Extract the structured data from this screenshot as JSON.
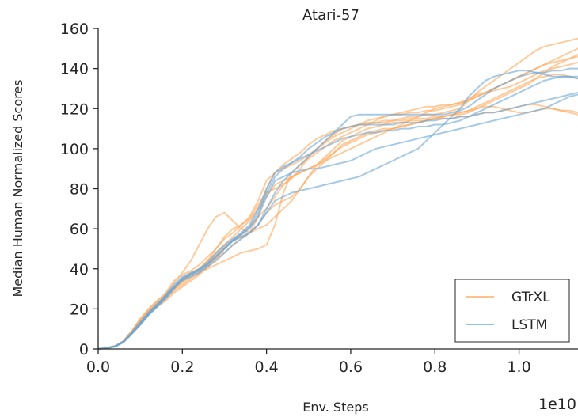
{
  "chart_data": {
    "type": "line",
    "title": "Atari-57",
    "xlabel": "Env. Steps",
    "ylabel": "Median Human Normalized Scores",
    "x_offset_label": "1e10",
    "xlim": [
      0,
      1.14
    ],
    "ylim": [
      0,
      160
    ],
    "xticks": [
      "0.0",
      "0.2",
      "0.4",
      "0.6",
      "0.8",
      "1.0"
    ],
    "yticks": [
      "0",
      "20",
      "40",
      "60",
      "80",
      "100",
      "120",
      "140",
      "160"
    ],
    "grid": false,
    "legend_position": "bottom-right",
    "legend": [
      {
        "label": "GTrXL",
        "color": "#ffa95c"
      },
      {
        "label": "LSTM",
        "color": "#6aa6d6"
      }
    ],
    "x": [
      0,
      0.02,
      0.04,
      0.06,
      0.08,
      0.1,
      0.12,
      0.14,
      0.16,
      0.18,
      0.2,
      0.22,
      0.24,
      0.26,
      0.28,
      0.3,
      0.32,
      0.34,
      0.36,
      0.38,
      0.4,
      0.42,
      0.44,
      0.46,
      0.48,
      0.5,
      0.52,
      0.54,
      0.56,
      0.58,
      0.6,
      0.62,
      0.64,
      0.66,
      0.68,
      0.7,
      0.72,
      0.74,
      0.76,
      0.78,
      0.8,
      0.82,
      0.84,
      0.86,
      0.88,
      0.9,
      0.92,
      0.94,
      0.96,
      0.98,
      1.0,
      1.02,
      1.04,
      1.06,
      1.08,
      1.1,
      1.12,
      1.14
    ],
    "series": [
      {
        "group": "GTrXL",
        "color": "#ffa95c",
        "values": [
          0,
          0.5,
          1.5,
          4,
          9,
          15,
          20,
          24,
          28,
          34,
          37,
          39,
          42,
          46,
          50,
          55,
          58,
          62,
          66,
          74,
          84,
          88,
          92,
          95,
          98,
          102,
          105,
          107,
          109,
          110,
          111,
          112,
          113,
          113,
          114,
          114,
          115,
          116,
          116,
          117,
          117,
          118,
          119,
          120,
          124,
          128,
          131,
          134,
          137,
          140,
          143,
          146,
          149,
          151,
          152,
          153,
          154,
          155
        ]
      },
      {
        "group": "GTrXL",
        "color": "#ffa95c",
        "values": [
          0,
          0.4,
          1.3,
          3.5,
          8,
          13,
          18,
          22,
          27,
          33,
          38,
          44,
          52,
          60,
          66,
          68,
          64,
          60,
          58,
          66,
          80,
          88,
          90,
          92,
          94,
          97,
          100,
          104,
          107,
          110,
          111,
          112,
          112,
          113,
          113,
          114,
          114,
          115,
          115,
          115,
          116,
          116,
          117,
          117,
          118,
          120,
          122,
          124,
          126,
          128,
          130,
          132,
          135,
          138,
          141,
          143,
          145,
          147
        ]
      },
      {
        "group": "GTrXL",
        "color": "#ffa95c",
        "values": [
          0,
          0.5,
          1.4,
          3.8,
          8.5,
          14,
          19,
          23,
          26,
          30,
          33,
          36,
          38,
          40,
          42,
          44,
          46,
          48,
          49,
          50,
          52,
          62,
          78,
          88,
          92,
          95,
          98,
          101,
          104,
          106,
          108,
          110,
          112,
          114,
          116,
          117,
          118,
          119,
          120,
          121,
          121,
          122,
          122,
          123,
          125,
          127,
          128,
          129,
          130,
          131,
          133,
          135,
          137,
          139,
          140,
          141,
          142,
          143
        ]
      },
      {
        "group": "GTrXL",
        "color": "#ffa95c",
        "values": [
          0,
          0.4,
          1.2,
          3.3,
          7.6,
          12,
          17,
          21,
          24,
          28,
          31,
          34,
          37,
          41,
          45,
          50,
          54,
          56,
          58,
          62,
          68,
          72,
          74,
          76,
          80,
          86,
          90,
          94,
          98,
          102,
          104,
          106,
          108,
          109,
          110,
          110,
          111,
          112,
          113,
          114,
          115,
          116,
          117,
          118,
          119,
          121,
          123,
          125,
          127,
          129,
          131,
          133,
          135,
          136,
          137,
          137,
          136,
          135
        ]
      },
      {
        "group": "GTrXL",
        "color": "#ffa95c",
        "values": [
          0,
          0.4,
          1.3,
          3.5,
          8,
          13,
          18,
          22,
          26,
          30,
          34,
          37,
          40,
          44,
          48,
          52,
          56,
          60,
          64,
          70,
          76,
          82,
          84,
          86,
          88,
          90,
          92,
          95,
          98,
          101,
          103,
          105,
          107,
          108,
          109,
          110,
          111,
          112,
          113,
          114,
          115,
          116,
          117,
          118,
          119,
          120,
          121,
          121,
          120,
          119,
          118,
          118,
          119,
          120,
          120,
          119,
          118,
          117
        ]
      },
      {
        "group": "GTrXL",
        "color": "#ffa95c",
        "values": [
          0,
          0.5,
          1.5,
          4,
          9,
          15,
          20,
          24,
          27,
          31,
          35,
          38,
          40,
          44,
          50,
          56,
          60,
          62,
          65,
          72,
          78,
          80,
          82,
          85,
          90,
          96,
          100,
          103,
          106,
          108,
          110,
          112,
          114,
          115,
          116,
          117,
          117,
          118,
          118,
          119,
          119,
          120,
          121,
          122,
          124,
          126,
          128,
          130,
          132,
          134,
          136,
          138,
          140,
          142,
          143,
          144,
          145,
          146
        ]
      },
      {
        "group": "GTrXL",
        "color": "#ffa95c",
        "values": [
          0,
          0.4,
          1.2,
          3.4,
          7.8,
          12.5,
          17.5,
          21.5,
          25,
          29,
          32,
          35,
          38,
          41,
          45,
          48,
          52,
          55,
          58,
          60,
          62,
          66,
          70,
          74,
          80,
          86,
          92,
          96,
          100,
          104,
          106,
          108,
          110,
          111,
          112,
          113,
          113,
          114,
          114,
          114,
          115,
          115,
          115,
          116,
          116,
          117,
          118,
          118,
          119,
          120,
          121,
          122,
          122,
          121,
          120,
          119,
          119,
          118
        ]
      },
      {
        "group": "GTrXL",
        "color": "#ffa95c",
        "values": [
          0,
          0.5,
          1.4,
          3.7,
          8.2,
          13.5,
          18.5,
          22.5,
          26,
          30,
          34,
          37,
          40,
          43,
          47,
          51,
          54,
          57,
          61,
          66,
          70,
          76,
          82,
          86,
          88,
          90,
          92,
          94,
          96,
          98,
          100,
          102,
          104,
          106,
          108,
          110,
          112,
          114,
          116,
          118,
          120,
          121,
          122,
          123,
          124,
          126,
          128,
          130,
          132,
          134,
          136,
          138,
          140,
          142,
          144,
          146,
          148,
          150
        ]
      },
      {
        "group": "LSTM",
        "color": "#6aa6d6",
        "values": [
          0,
          0.4,
          1.2,
          3.3,
          7.5,
          12,
          17,
          21,
          25,
          30,
          35,
          37,
          39,
          42,
          46,
          50,
          54,
          56,
          58,
          62,
          68,
          74,
          76,
          78,
          79,
          80,
          81,
          82,
          83,
          84,
          85,
          86,
          88,
          90,
          92,
          94,
          96,
          98,
          100,
          104,
          108,
          112,
          116,
          120,
          126,
          130,
          134,
          136,
          137,
          138,
          139,
          139,
          138,
          137,
          136,
          136,
          136,
          135
        ]
      },
      {
        "group": "LSTM",
        "color": "#6aa6d6",
        "values": [
          0,
          0.5,
          1.4,
          3.6,
          8,
          13,
          18,
          22,
          27,
          32,
          36,
          38,
          40,
          43,
          48,
          52,
          55,
          58,
          62,
          70,
          80,
          88,
          91,
          93,
          96,
          100,
          103,
          106,
          108,
          110,
          111,
          112,
          112,
          112,
          112,
          112,
          113,
          113,
          113,
          114,
          114,
          115,
          115,
          116,
          116,
          117,
          118,
          118,
          119,
          120,
          121,
          122,
          123,
          124,
          125,
          126,
          127,
          128
        ]
      },
      {
        "group": "LSTM",
        "color": "#6aa6d6",
        "values": [
          0,
          0.4,
          1.3,
          3.5,
          7.8,
          12.5,
          17.5,
          21.5,
          26,
          31,
          34,
          36,
          38,
          41,
          44,
          48,
          52,
          55,
          58,
          62,
          70,
          78,
          84,
          88,
          92,
          96,
          100,
          104,
          108,
          112,
          116,
          117,
          117,
          117,
          117,
          117,
          117,
          117,
          117,
          117,
          117,
          117,
          118,
          119,
          121,
          124,
          127,
          130,
          132,
          134,
          136,
          137,
          138,
          138,
          139,
          139,
          140,
          140
        ]
      },
      {
        "group": "LSTM",
        "color": "#6aa6d6",
        "values": [
          0,
          0.5,
          1.5,
          3.8,
          8.3,
          13.5,
          18.5,
          22.5,
          26.5,
          31,
          34.5,
          37,
          39,
          42,
          46,
          50,
          54,
          57,
          60,
          66,
          76,
          84,
          86,
          88,
          89,
          90,
          90,
          91,
          92,
          93,
          94,
          96,
          98,
          100,
          101,
          102,
          103,
          104,
          105,
          106,
          107,
          108,
          109,
          110,
          111,
          112,
          113,
          114,
          115,
          116,
          117,
          118,
          119,
          120,
          122,
          124,
          126,
          127
        ]
      },
      {
        "group": "LSTM",
        "color": "#6aa6d6",
        "values": [
          0,
          0.4,
          1.2,
          3.4,
          7.7,
          12.2,
          17.2,
          21.2,
          25.5,
          30.5,
          35.5,
          37.5,
          39.5,
          42.5,
          46.5,
          50.5,
          54.5,
          57.5,
          61,
          68,
          78,
          86,
          90,
          93,
          95,
          97,
          99,
          101,
          103,
          105,
          106,
          107,
          108,
          108,
          109,
          109,
          110,
          110,
          111,
          111,
          112,
          112,
          113,
          114,
          116,
          118,
          120,
          122,
          124,
          126,
          128,
          130,
          132,
          134,
          135,
          136,
          136,
          136
        ]
      }
    ]
  }
}
